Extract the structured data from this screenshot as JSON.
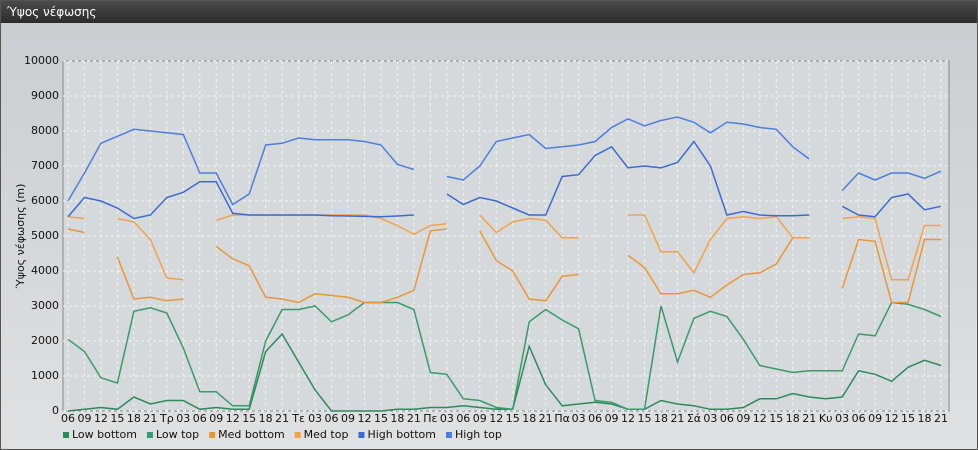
{
  "window_title": "Ύψος νέφωσης",
  "chart_data": {
    "type": "line",
    "y_label": "Ύψος νέφωσης (m)",
    "categories": [
      "06",
      "09",
      "12",
      "15",
      "18",
      "21",
      "Τρ",
      "03",
      "06",
      "09",
      "12",
      "15",
      "18",
      "21",
      "Τε",
      "03",
      "06",
      "09",
      "12",
      "15",
      "18",
      "21",
      "Πε",
      "03",
      "06",
      "09",
      "12",
      "15",
      "18",
      "21",
      "Πα",
      "03",
      "06",
      "09",
      "12",
      "15",
      "18",
      "21",
      "Σά",
      "03",
      "06",
      "09",
      "12",
      "15",
      "18",
      "21",
      "Κυ",
      "03",
      "06",
      "09",
      "12",
      "15",
      "18",
      "21"
    ],
    "ylim": [
      0,
      10000
    ],
    "yticks": [
      0,
      1000,
      2000,
      3000,
      4000,
      5000,
      6000,
      7000,
      8000,
      9000,
      10000
    ],
    "grid": true,
    "series": [
      {
        "name": "Low bottom",
        "color": "#2e8a5a",
        "values": [
          0,
          50,
          100,
          50,
          400,
          200,
          300,
          300,
          50,
          100,
          50,
          50,
          1700,
          2200,
          1400,
          600,
          0,
          0,
          0,
          0,
          50,
          50,
          100,
          100,
          150,
          100,
          50,
          50,
          1850,
          750,
          150,
          200,
          250,
          200,
          50,
          50,
          300,
          200,
          150,
          50,
          50,
          100,
          350,
          350,
          500,
          400,
          350,
          400,
          1150,
          1050,
          850,
          1250,
          1450,
          1300
        ]
      },
      {
        "name": "Low top",
        "color": "#3a9a6c",
        "values": [
          2050,
          1700,
          950,
          800,
          2850,
          2950,
          2800,
          1800,
          550,
          550,
          150,
          150,
          2000,
          2900,
          2900,
          3000,
          2550,
          2750,
          3100,
          3100,
          3100,
          2900,
          1100,
          1050,
          350,
          300,
          100,
          50,
          2550,
          2900,
          2600,
          2350,
          300,
          250,
          50,
          50,
          3000,
          1400,
          2650,
          2850,
          2700,
          2050,
          1300,
          1200,
          1100,
          1150,
          1150,
          1150,
          2200,
          2150,
          3100,
          3050,
          2900,
          2700
        ]
      },
      {
        "name": "Med bottom",
        "color": "#e8963a",
        "values": [
          5200,
          5100,
          null,
          4400,
          3200,
          3250,
          3150,
          3200,
          null,
          4700,
          4350,
          4150,
          3250,
          3200,
          3100,
          3350,
          3300,
          3250,
          3100,
          3100,
          3250,
          3450,
          5150,
          5200,
          null,
          5150,
          4300,
          4000,
          3200,
          3150,
          3850,
          3900,
          null,
          null,
          4450,
          4100,
          3350,
          3350,
          3450,
          3250,
          3600,
          3900,
          3950,
          4200,
          4950,
          4950,
          null,
          3500,
          4900,
          4850,
          3100,
          3100,
          4900,
          4900
        ]
      },
      {
        "name": "Med top",
        "color": "#f0a24e",
        "values": [
          5550,
          5500,
          null,
          5500,
          5400,
          4900,
          3800,
          3750,
          null,
          5450,
          5600,
          5600,
          5600,
          5600,
          5600,
          5600,
          5600,
          5600,
          5600,
          5500,
          5300,
          5050,
          5300,
          5350,
          null,
          5600,
          5100,
          5400,
          5500,
          5450,
          4950,
          4950,
          null,
          null,
          5600,
          5600,
          4550,
          4550,
          3950,
          4900,
          5500,
          5550,
          5500,
          5550,
          4950,
          4950,
          null,
          5500,
          5550,
          5500,
          3750,
          3750,
          5300,
          5300
        ]
      },
      {
        "name": "High bottom",
        "color": "#3a6bd4",
        "values": [
          5550,
          6100,
          6000,
          5800,
          5500,
          5600,
          6100,
          6250,
          6550,
          6550,
          5650,
          5600,
          5600,
          5600,
          5600,
          5600,
          5580,
          5570,
          5560,
          5550,
          5570,
          5600,
          null,
          6200,
          5900,
          6100,
          6000,
          5800,
          5600,
          5600,
          6700,
          6750,
          7300,
          7550,
          6950,
          7000,
          6950,
          7100,
          7700,
          7000,
          5600,
          5700,
          5600,
          5580,
          5580,
          5600,
          null,
          5850,
          5600,
          5550,
          6100,
          6200,
          5750,
          5850
        ]
      },
      {
        "name": "High top",
        "color": "#4a7ee2",
        "values": [
          6000,
          6800,
          7650,
          7850,
          8050,
          8000,
          7950,
          7900,
          6800,
          6800,
          5900,
          6200,
          7600,
          7650,
          7800,
          7750,
          7750,
          7750,
          7700,
          7600,
          7050,
          6900,
          null,
          6700,
          6600,
          7000,
          7700,
          7800,
          7900,
          7500,
          7550,
          7600,
          7700,
          8100,
          8350,
          8150,
          8300,
          8400,
          8250,
          7950,
          8250,
          8200,
          8100,
          8050,
          7550,
          7200,
          null,
          6300,
          6800,
          6600,
          6800,
          6800,
          6650,
          6850
        ]
      }
    ]
  }
}
